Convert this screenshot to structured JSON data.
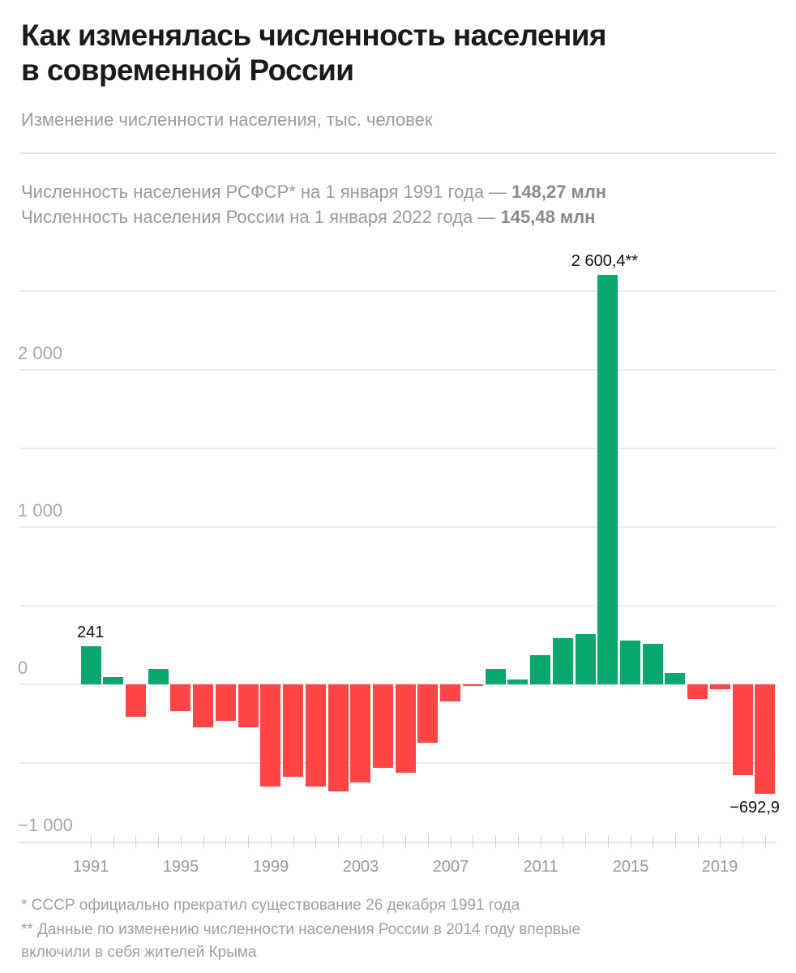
{
  "header": {
    "title_line1": "Как изменялась численность населения",
    "title_line2": "в современной России",
    "subtitle": "Изменение численности населения, тыс. человек"
  },
  "info": {
    "line1_text": "Численность населения РСФСР* на 1 января 1991 года — ",
    "line1_value": "148,27 млн",
    "line2_text": "Численность населения России на 1 января 2022 года — ",
    "line2_value": "145,48 млн"
  },
  "footnotes": {
    "note1": "* СССР официально прекратил существование 26 декабря 1991 года",
    "note2_line1": "** Данные по изменению численности населения России в 2014 году впервые",
    "note2_line2": "включили в себя жителей Крыма"
  },
  "colors": {
    "positive": "#06a86e",
    "negative": "#ff4545"
  },
  "chart_data": {
    "type": "bar",
    "title": "Как изменялась численность населения в современной России",
    "subtitle": "Изменение численности населения, тыс. человек",
    "xlabel": "",
    "ylabel": "тыс. человек",
    "categories": [
      1991,
      1992,
      1993,
      1994,
      1995,
      1996,
      1997,
      1998,
      1999,
      2000,
      2001,
      2002,
      2003,
      2004,
      2005,
      2006,
      2007,
      2008,
      2009,
      2010,
      2011,
      2012,
      2013,
      2014,
      2015,
      2016,
      2017,
      2018,
      2019,
      2020,
      2021
    ],
    "values": [
      241,
      47,
      -206,
      98,
      -170,
      -273,
      -232,
      -273,
      -650,
      -585,
      -650,
      -681,
      -625,
      -528,
      -560,
      -373,
      -110,
      -10,
      98,
      31,
      186,
      292,
      318,
      2600.4,
      276,
      259,
      72,
      -93,
      -32,
      -577,
      -692.9
    ],
    "ylim": [
      -1000,
      2600.4
    ],
    "yticks": [
      -1000,
      0,
      1000,
      2000
    ],
    "ytick_labels": [
      "−1 000",
      "0",
      "1 000",
      "2 000"
    ],
    "gridlines": [
      -1000,
      -500,
      0,
      500,
      1000,
      1500,
      2000,
      2500
    ],
    "xtick_labels": [
      "1991",
      "1995",
      "1999",
      "2003",
      "2007",
      "2011",
      "2015",
      "2019"
    ],
    "annotations": [
      {
        "year": 1991,
        "label": "241"
      },
      {
        "year": 2014,
        "label": "2 600,4**"
      },
      {
        "year": 2021,
        "label": "−692,9"
      }
    ],
    "grid": true,
    "legend": null
  }
}
